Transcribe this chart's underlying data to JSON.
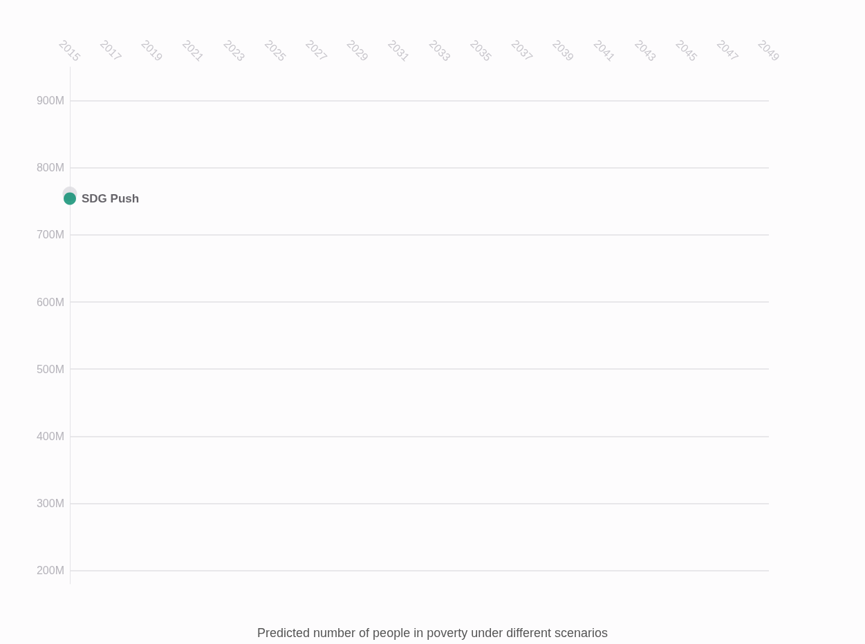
{
  "chart_data": {
    "type": "scatter",
    "title": "Predicted number of people in poverty under different scenarios",
    "x": [
      2015
    ],
    "series": [
      {
        "color": "#dcdbe0",
        "values": [
          761
        ]
      },
      {
        "name": "SDG Push",
        "color": "#00896b",
        "values": [
          754
        ]
      }
    ],
    "xlim": [
      2015,
      2049
    ],
    "xticks": [
      2015,
      2017,
      2019,
      2021,
      2023,
      2025,
      2027,
      2029,
      2031,
      2033,
      2035,
      2037,
      2039,
      2041,
      2043,
      2045,
      2047,
      2049
    ],
    "ylim": [
      180,
      950
    ],
    "yticks": [
      {
        "value": 200,
        "label": "200M"
      },
      {
        "value": 300,
        "label": "300M"
      },
      {
        "value": 400,
        "label": "400M"
      },
      {
        "value": 500,
        "label": "500M"
      },
      {
        "value": 600,
        "label": "600M"
      },
      {
        "value": 700,
        "label": "700M"
      },
      {
        "value": 800,
        "label": "800M"
      },
      {
        "value": 900,
        "label": "900M"
      }
    ],
    "grid": "y",
    "legend": false,
    "marker": "circle"
  }
}
